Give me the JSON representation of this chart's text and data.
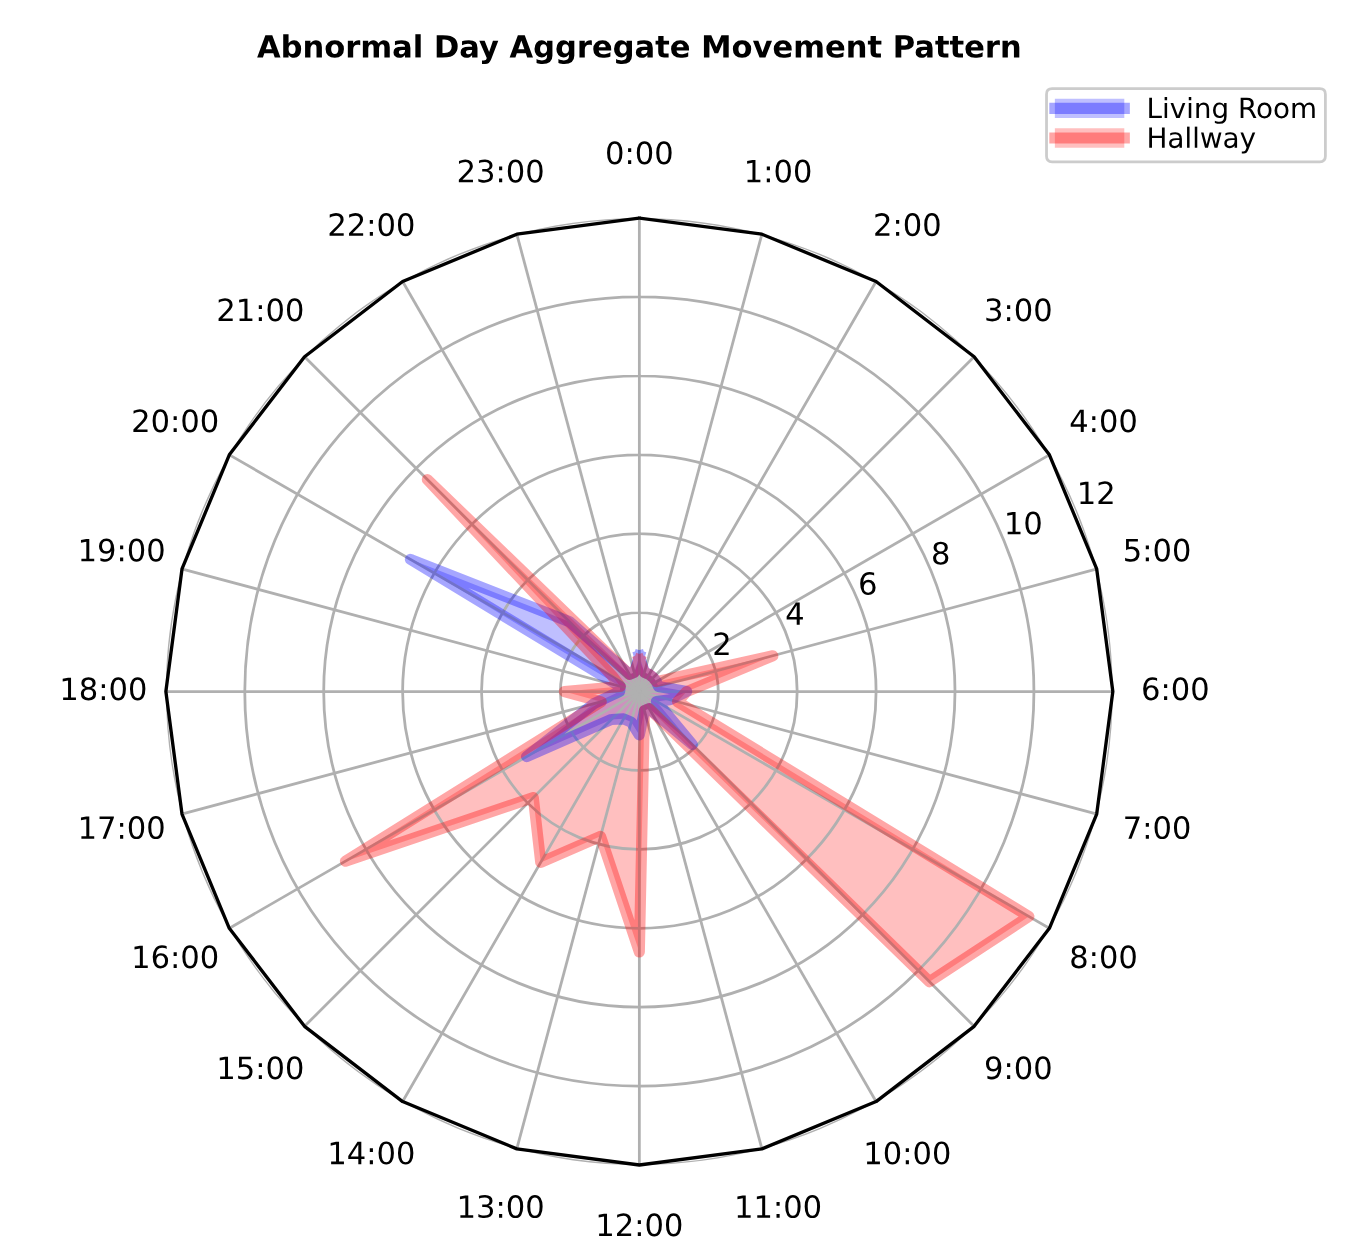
{
  "chart_data": {
    "type": "radar",
    "title": "Abnormal Day Aggregate Movement Pattern",
    "categories": [
      "0:00",
      "1:00",
      "2:00",
      "3:00",
      "4:00",
      "5:00",
      "6:00",
      "7:00",
      "8:00",
      "9:00",
      "10:00",
      "11:00",
      "12:00",
      "13:00",
      "14:00",
      "15:00",
      "16:00",
      "17:00",
      "18:00",
      "19:00",
      "20:00",
      "21:00",
      "22:00",
      "23:00"
    ],
    "series": [
      {
        "name": "Living Room",
        "color": "#0000ff",
        "values": [
          0.9,
          0.5,
          0.5,
          0.5,
          0.5,
          0.5,
          1.2,
          0.8,
          0.5,
          1.9,
          0.5,
          0.5,
          1.1,
          0.8,
          0.8,
          1.0,
          3.3,
          1.2,
          0.5,
          0.5,
          6.7,
          2.5,
          0.5,
          0.5
        ]
      },
      {
        "name": "Hallway",
        "color": "#ff0000",
        "values": [
          0.8,
          0.5,
          0.5,
          0.5,
          0.5,
          3.5,
          1.2,
          1.0,
          11.4,
          10.4,
          0.5,
          0.5,
          6.6,
          3.8,
          5.0,
          3.8,
          8.6,
          1.0,
          1.9,
          0.5,
          0.8,
          7.6,
          0.5,
          0.5
        ]
      }
    ],
    "ylim": [
      0,
      12
    ],
    "yticks": [
      2,
      4,
      6,
      8,
      10,
      12
    ],
    "grid": true,
    "legend": "top right"
  }
}
